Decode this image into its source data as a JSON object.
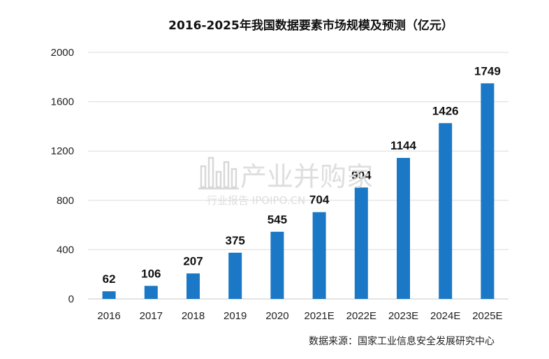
{
  "chart_data": {
    "type": "bar",
    "title": "2016-2025年我国数据要素市场规模及预测（亿元）",
    "categories": [
      "2016",
      "2017",
      "2018",
      "2019",
      "2020",
      "2021E",
      "2022E",
      "2023E",
      "2024E",
      "2025E"
    ],
    "values": [
      62,
      106,
      207,
      375,
      545,
      704,
      904,
      1144,
      1426,
      1749
    ],
    "data_labels": [
      "62",
      "106",
      "207",
      "375",
      "545",
      "704",
      "904",
      "1144",
      "1426",
      "1749"
    ],
    "ylim": [
      0,
      2000
    ],
    "yticks": [
      0,
      400,
      800,
      1200,
      1600,
      2000
    ],
    "ytick_labels": [
      "0",
      "400",
      "800",
      "1200",
      "1600",
      "2000"
    ],
    "grid": true,
    "legend": "none",
    "bar_color": "#1a78c6"
  },
  "source": "数据来源：国家工业信息安全发展研究中心",
  "watermark": {
    "text": "产业并购家",
    "subtext": "行业报告 IPOIPO.CN"
  }
}
